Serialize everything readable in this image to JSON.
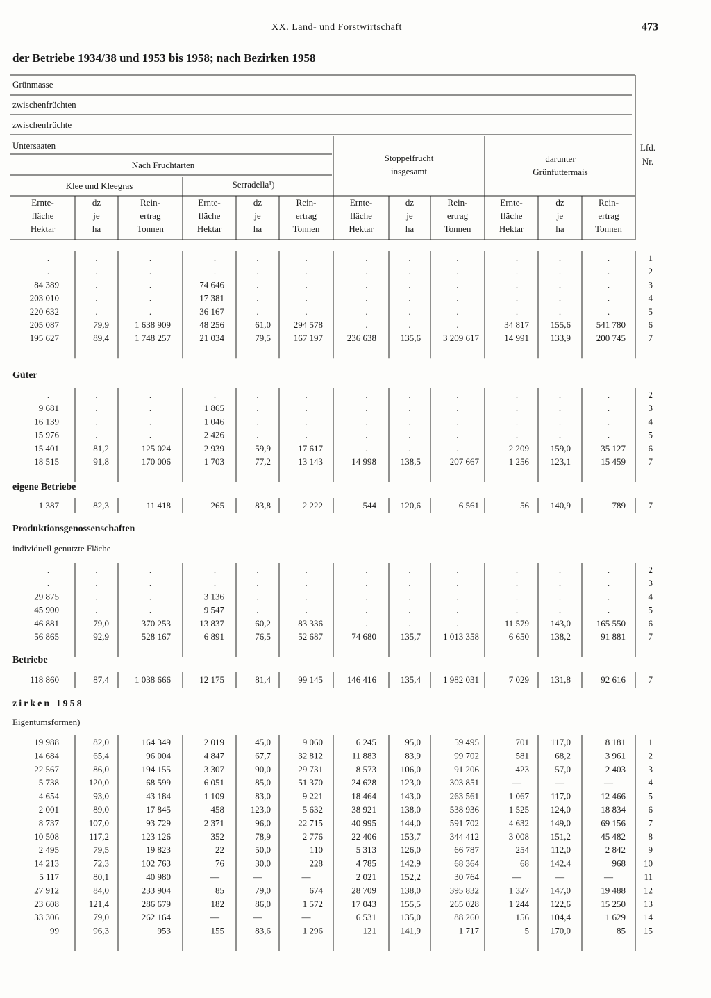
{
  "header": {
    "running_title": "XX. Land- und Forstwirtschaft",
    "page_number": "473"
  },
  "title": "der Betriebe 1934/38 und 1953 bis 1958; nach Bezirken 1958",
  "column_header": {
    "levels": [
      "Grünmasse",
      "zwischenfrüchten",
      "zwischenfrüchte",
      "Untersaaten"
    ],
    "nach_fruchtarten": "Nach Fruchtarten",
    "klee": "Klee und Kleegras",
    "serradella": "Serradella¹)",
    "stoppelfrucht": [
      "Stoppelfrucht",
      "insgesamt"
    ],
    "gruenfuttermais": [
      "darunter",
      "Grünfuttermais"
    ],
    "lfd_nr": [
      "Lfd.",
      "Nr."
    ],
    "columns": [
      [
        "Ernte-",
        "fläche",
        "Hektar"
      ],
      [
        "dz",
        "je",
        "ha"
      ],
      [
        "Rein-",
        "ertrag",
        "Tonnen"
      ],
      [
        "Ernte-",
        "fläche",
        "Hektar"
      ],
      [
        "dz",
        "je",
        "ha"
      ],
      [
        "Rein-",
        "ertrag",
        "Tonnen"
      ],
      [
        "Ernte-",
        "fläche",
        "Hektar"
      ],
      [
        "dz",
        "je",
        "ha"
      ],
      [
        "Rein-",
        "ertrag",
        "Tonnen"
      ],
      [
        "Ernte-",
        "fläche",
        "Hektar"
      ],
      [
        "dz",
        "je",
        "ha"
      ],
      [
        "Rein-",
        "ertrag",
        "Tonnen"
      ]
    ]
  },
  "sections": [
    {
      "rows": [
        {
          "cells": [
            ".",
            ".",
            ".",
            ".",
            ".",
            ".",
            ".",
            ".",
            ".",
            ".",
            ".",
            "."
          ],
          "nr": "1"
        },
        {
          "cells": [
            ".",
            ".",
            ".",
            ".",
            ".",
            ".",
            ".",
            ".",
            ".",
            ".",
            ".",
            "."
          ],
          "nr": "2"
        },
        {
          "cells": [
            "84 389",
            ".",
            ".",
            "74 646",
            ".",
            ".",
            ".",
            ".",
            ".",
            ".",
            ".",
            "."
          ],
          "nr": "3"
        },
        {
          "cells": [
            "203 010",
            ".",
            ".",
            "17 381",
            ".",
            ".",
            ".",
            ".",
            ".",
            ".",
            ".",
            "."
          ],
          "nr": "4"
        },
        {
          "cells": [
            "220 632",
            ".",
            ".",
            "36 167",
            ".",
            ".",
            ".",
            ".",
            ".",
            ".",
            ".",
            "."
          ],
          "nr": "5"
        },
        {
          "cells": [
            "205 087",
            "79,9",
            "1 638 909",
            "48 256",
            "61,0",
            "294 578",
            ".",
            ".",
            ".",
            "34 817",
            "155,6",
            "541 780"
          ],
          "nr": "6"
        },
        {
          "cells": [
            "195 627",
            "89,4",
            "1 748 257",
            "21 034",
            "79,5",
            "167 197",
            "236 638",
            "135,6",
            "3 209 617",
            "14 991",
            "133,9",
            "200 745"
          ],
          "nr": "7"
        }
      ]
    },
    {
      "heading": [
        {
          "text": "Güter",
          "bold": true
        }
      ],
      "rows": [
        {
          "cells": [
            ".",
            ".",
            ".",
            ".",
            ".",
            ".",
            ".",
            ".",
            ".",
            ".",
            ".",
            "."
          ],
          "nr": "2"
        },
        {
          "cells": [
            "9 681",
            ".",
            ".",
            "1 865",
            ".",
            ".",
            ".",
            ".",
            ".",
            ".",
            ".",
            "."
          ],
          "nr": "3"
        },
        {
          "cells": [
            "16 139",
            ".",
            ".",
            "1 046",
            ".",
            ".",
            ".",
            ".",
            ".",
            ".",
            ".",
            "."
          ],
          "nr": "4"
        },
        {
          "cells": [
            "15 976",
            ".",
            ".",
            "2 426",
            ".",
            ".",
            ".",
            ".",
            ".",
            ".",
            ".",
            "."
          ],
          "nr": "5"
        },
        {
          "cells": [
            "15 401",
            "81,2",
            "125 024",
            "2 939",
            "59,9",
            "17 617",
            ".",
            ".",
            ".",
            "2 209",
            "159,0",
            "35 127"
          ],
          "nr": "6"
        },
        {
          "cells": [
            "18 515",
            "91,8",
            "170 006",
            "1 703",
            "77,2",
            "13 143",
            "14 998",
            "138,5",
            "207 667",
            "1 256",
            "123,1",
            "15 459"
          ],
          "nr": "7"
        }
      ]
    },
    {
      "heading": [
        {
          "text": "eigene Betriebe",
          "bold": true
        }
      ],
      "rows": [
        {
          "cells": [
            "1 387",
            "82,3",
            "11 418",
            "265",
            "83,8",
            "2 222",
            "544",
            "120,6",
            "6 561",
            "56",
            "140,9",
            "789"
          ],
          "nr": "7"
        }
      ]
    },
    {
      "heading": [
        {
          "text": "Produktionsgenossenschaften",
          "bold": true
        },
        {
          "text": "individuell genutzte Fläche",
          "bold": false
        }
      ],
      "rows": [
        {
          "cells": [
            ".",
            ".",
            ".",
            ".",
            ".",
            ".",
            ".",
            ".",
            ".",
            ".",
            ".",
            "."
          ],
          "nr": "2"
        },
        {
          "cells": [
            ".",
            ".",
            ".",
            ".",
            ".",
            ".",
            ".",
            ".",
            ".",
            ".",
            ".",
            "."
          ],
          "nr": "3"
        },
        {
          "cells": [
            "29 875",
            ".",
            ".",
            "3 136",
            ".",
            ".",
            ".",
            ".",
            ".",
            ".",
            ".",
            "."
          ],
          "nr": "4"
        },
        {
          "cells": [
            "45 900",
            ".",
            ".",
            "9 547",
            ".",
            ".",
            ".",
            ".",
            ".",
            ".",
            ".",
            "."
          ],
          "nr": "5"
        },
        {
          "cells": [
            "46 881",
            "79,0",
            "370 253",
            "13 837",
            "60,2",
            "83 336",
            ".",
            ".",
            ".",
            "11 579",
            "143,0",
            "165 550"
          ],
          "nr": "6"
        },
        {
          "cells": [
            "56 865",
            "92,9",
            "528 167",
            "6 891",
            "76,5",
            "52 687",
            "74 680",
            "135,7",
            "1 013 358",
            "6 650",
            "138,2",
            "91 881"
          ],
          "nr": "7"
        }
      ]
    },
    {
      "heading": [
        {
          "text": "Betriebe",
          "bold": true
        }
      ],
      "rows": [
        {
          "cells": [
            "118 860",
            "87,4",
            "1 038 666",
            "12 175",
            "81,4",
            "99 145",
            "146 416",
            "135,4",
            "1 982 031",
            "7 029",
            "131,8",
            "92 616"
          ],
          "nr": "7"
        }
      ]
    },
    {
      "heading": [
        {
          "text": "zirken 1958",
          "bold": true
        },
        {
          "text": "Eigentumsformen)",
          "bold": false
        }
      ],
      "rows": [
        {
          "cells": [
            "19 988",
            "82,0",
            "164 349",
            "2 019",
            "45,0",
            "9 060",
            "6 245",
            "95,0",
            "59 495",
            "701",
            "117,0",
            "8 181"
          ],
          "nr": "1"
        },
        {
          "cells": [
            "14 684",
            "65,4",
            "96 004",
            "4 847",
            "67,7",
            "32 812",
            "11 883",
            "83,9",
            "99 702",
            "581",
            "68,2",
            "3 961"
          ],
          "nr": "2"
        },
        {
          "cells": [
            "22 567",
            "86,0",
            "194 155",
            "3 307",
            "90,0",
            "29 731",
            "8 573",
            "106,0",
            "91 206",
            "423",
            "57,0",
            "2 403"
          ],
          "nr": "3"
        },
        {
          "cells": [
            "5 738",
            "120,0",
            "68 599",
            "6 051",
            "85,0",
            "51 370",
            "24 628",
            "123,0",
            "303 851",
            "—",
            "—",
            "—"
          ],
          "nr": "4"
        },
        {
          "cells": [
            "4 654",
            "93,0",
            "43 184",
            "1 109",
            "83,0",
            "9 221",
            "18 464",
            "143,0",
            "263 561",
            "1 067",
            "117,0",
            "12 466"
          ],
          "nr": "5"
        },
        {
          "cells": [
            "2 001",
            "89,0",
            "17 845",
            "458",
            "123,0",
            "5 632",
            "38 921",
            "138,0",
            "538 936",
            "1 525",
            "124,0",
            "18 834"
          ],
          "nr": "6"
        },
        {
          "cells": [
            "8 737",
            "107,0",
            "93 729",
            "2 371",
            "96,0",
            "22 715",
            "40 995",
            "144,0",
            "591 702",
            "4 632",
            "149,0",
            "69 156"
          ],
          "nr": "7"
        },
        {
          "cells": [
            "10 508",
            "117,2",
            "123 126",
            "352",
            "78,9",
            "2 776",
            "22 406",
            "153,7",
            "344 412",
            "3 008",
            "151,2",
            "45 482"
          ],
          "nr": "8"
        },
        {
          "cells": [
            "2 495",
            "79,5",
            "19 823",
            "22",
            "50,0",
            "110",
            "5 313",
            "126,0",
            "66 787",
            "254",
            "112,0",
            "2 842"
          ],
          "nr": "9"
        },
        {
          "cells": [
            "14 213",
            "72,3",
            "102 763",
            "76",
            "30,0",
            "228",
            "4 785",
            "142,9",
            "68 364",
            "68",
            "142,4",
            "968"
          ],
          "nr": "10"
        },
        {
          "cells": [
            "5 117",
            "80,1",
            "40 980",
            "—",
            "—",
            "—",
            "2 021",
            "152,2",
            "30 764",
            "—",
            "—",
            "—"
          ],
          "nr": "11"
        },
        {
          "cells": [
            "27 912",
            "84,0",
            "233 904",
            "85",
            "79,0",
            "674",
            "28 709",
            "138,0",
            "395 832",
            "1 327",
            "147,0",
            "19 488"
          ],
          "nr": "12"
        },
        {
          "cells": [
            "23 608",
            "121,4",
            "286 679",
            "182",
            "86,0",
            "1 572",
            "17 043",
            "155,5",
            "265 028",
            "1 244",
            "122,6",
            "15 250"
          ],
          "nr": "13"
        },
        {
          "cells": [
            "33 306",
            "79,0",
            "262 164",
            "—",
            "—",
            "—",
            "6 531",
            "135,0",
            "88 260",
            "156",
            "104,4",
            "1 629"
          ],
          "nr": "14"
        },
        {
          "cells": [
            "99",
            "96,3",
            "953",
            "155",
            "83,6",
            "1 296",
            "121",
            "141,9",
            "1 717",
            "5",
            "170,0",
            "85"
          ],
          "nr": "15"
        }
      ]
    }
  ]
}
